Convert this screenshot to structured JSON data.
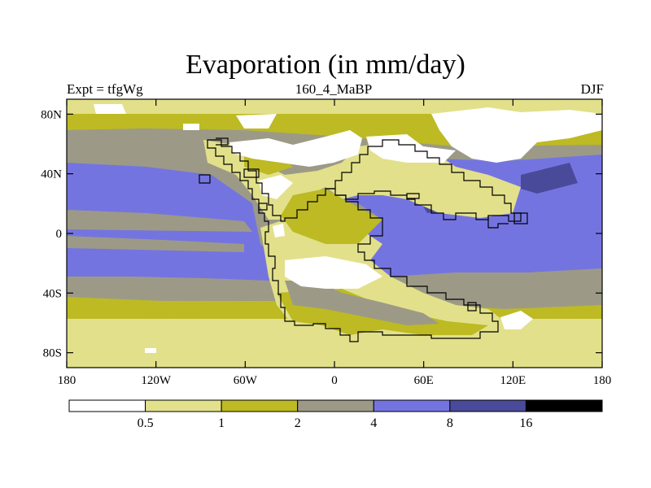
{
  "title": "Evaporation (in mm/day)",
  "subtitle_left": "Expt = tfgWg",
  "subtitle_center": "160_4_MaBP",
  "subtitle_right": "DJF",
  "y_ticks": [
    {
      "label": "80N",
      "lat": 80
    },
    {
      "label": "40N",
      "lat": 40
    },
    {
      "label": "0",
      "lat": 0
    },
    {
      "label": "40S",
      "lat": -40
    },
    {
      "label": "80S",
      "lat": -80
    }
  ],
  "x_ticks": [
    {
      "label": "180",
      "lon": -180
    },
    {
      "label": "120W",
      "lon": -120
    },
    {
      "label": "60W",
      "lon": -60
    },
    {
      "label": "0",
      "lon": 0
    },
    {
      "label": "60E",
      "lon": 60
    },
    {
      "label": "120E",
      "lon": 120
    },
    {
      "label": "180",
      "lon": 180
    }
  ],
  "colorbar": {
    "colors": [
      "#ffffff",
      "#e2e08a",
      "#bdba23",
      "#9c9a87",
      "#7474e1",
      "#4a4a9a",
      "#000000"
    ],
    "labels": [
      "0.5",
      "1",
      "2",
      "4",
      "8",
      "16"
    ]
  },
  "map_colors": {
    "lt05": "#ffffff",
    "c05_1": "#e2e08a",
    "c1_2": "#bdba23",
    "c2_4": "#9c9a87",
    "c4_8": "#7474e1",
    "c8_16": "#4a4a9a"
  }
}
